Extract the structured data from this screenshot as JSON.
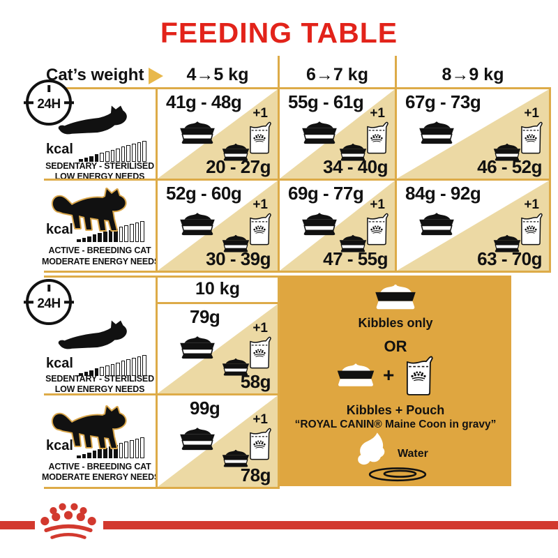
{
  "title": "FEEDING TABLE",
  "colors": {
    "title_red": "#e2231a",
    "brand_red": "#d2392e",
    "gold_border": "#ddab48",
    "tan_triangle": "#ecd9a4",
    "legend_gold": "#dfa640",
    "text_black": "#111111"
  },
  "header": {
    "label": "Cat’s weight",
    "columns": [
      "4→5 kg",
      "6→7 kg",
      "8→9 kg"
    ]
  },
  "clock_label": "24H",
  "kcal_label": "kcal",
  "plus_one": "+1",
  "row_labels": {
    "sedentary": {
      "line1": "SEDENTARY - STERILISED",
      "line2": "LOW ENERGY NEEDS",
      "bars": {
        "total": 13,
        "filled": 4
      }
    },
    "active": {
      "line1": "ACTIVE - BREEDING CAT",
      "line2": "MODERATE ENERGY NEEDS",
      "bars": {
        "total": 13,
        "filled": 8
      }
    }
  },
  "cells": {
    "sedentary": [
      {
        "kibbles": "41g - 48g",
        "mixed": "20 - 27g"
      },
      {
        "kibbles": "55g - 61g",
        "mixed": "34 - 40g"
      },
      {
        "kibbles": "67g - 73g",
        "mixed": "46 - 52g"
      }
    ],
    "active": [
      {
        "kibbles": "52g - 60g",
        "mixed": "30 - 39g"
      },
      {
        "kibbles": "69g - 77g",
        "mixed": "47 - 55g"
      },
      {
        "kibbles": "84g - 92g",
        "mixed": "63 - 70g"
      }
    ],
    "ten_kg_header": "10 kg",
    "ten_kg": {
      "sedentary": {
        "kibbles": "79g",
        "mixed": "58g"
      },
      "active": {
        "kibbles": "99g",
        "mixed": "78g"
      }
    }
  },
  "legend": {
    "kibbles_only": "Kibbles only",
    "or": "OR",
    "plus": "+",
    "kibbles_pouch": "Kibbles + Pouch",
    "pouch_name": "“ROYAL CANIN® Maine Coon in gravy”",
    "water": "Water"
  }
}
